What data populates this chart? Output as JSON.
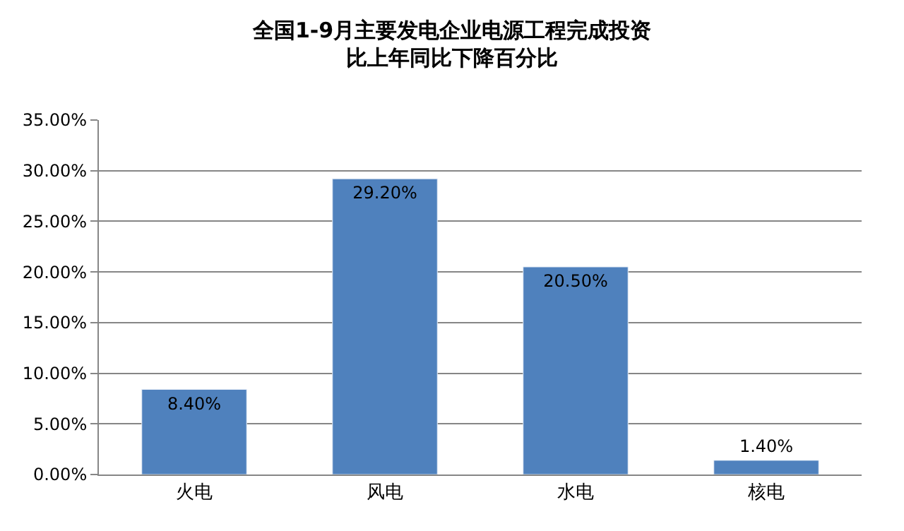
{
  "chart_data": {
    "type": "bar",
    "title": "全国1-9月主要发电企业电源工程完成投资",
    "subtitle": "比上年同比下降百分比",
    "categories": [
      "火电",
      "风电",
      "水电",
      "核电"
    ],
    "values": [
      8.4,
      29.2,
      20.5,
      1.4
    ],
    "value_labels": [
      "8.40%",
      "29.20%",
      "20.50%",
      "1.40%"
    ],
    "color": "#4f81bd",
    "ylim": [
      0,
      35
    ],
    "yticks": [
      {
        "value": 0,
        "label": "0.00%"
      },
      {
        "value": 5,
        "label": "5.00%"
      },
      {
        "value": 10,
        "label": "10.00%"
      },
      {
        "value": 15,
        "label": "15.00%"
      },
      {
        "value": 20,
        "label": "20.00%"
      },
      {
        "value": 25,
        "label": "25.00%"
      },
      {
        "value": 30,
        "label": "30.00%"
      },
      {
        "value": 35,
        "label": "35.00%"
      }
    ],
    "grid": "y",
    "legend": false
  }
}
